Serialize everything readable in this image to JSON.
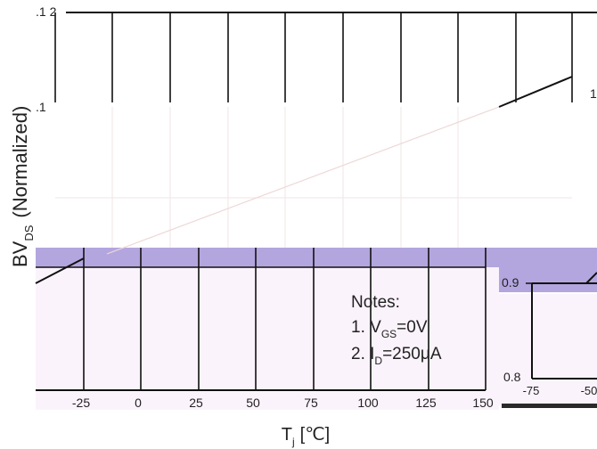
{
  "chart_data": {
    "type": "line",
    "xlabel_main": "T",
    "xlabel_sub": "j",
    "xlabel_unit": "[℃]",
    "ylabel_main": "BV",
    "ylabel_sub": "DS",
    "ylabel_tail": "(Normalized)",
    "x_ticks": [
      "-25",
      "0",
      "25",
      "50",
      "75",
      "100",
      "125",
      "150"
    ],
    "inset_x_ticks": [
      "-75",
      "-50"
    ],
    "y_ticks_left": [
      ".1 2",
      ".1",
      "0.9",
      "0.8"
    ],
    "y_ticks_right": [
      "1"
    ],
    "xlim": [
      -50,
      150
    ],
    "ylim": [
      0.8,
      1.2
    ],
    "grid": true,
    "series": [
      {
        "x": [
          -50,
          -25,
          0,
          25,
          50,
          75,
          100,
          125,
          150
        ],
        "y": [
          0.9,
          0.92,
          0.94,
          0.96,
          0.98,
          1.0,
          1.02,
          1.04,
          1.06
        ]
      }
    ],
    "notes": {
      "title": "Notes:",
      "line1_prefix": "1. V",
      "line1_sub": "GS",
      "line1_suffix": "=0V",
      "line2_prefix": "2. I",
      "line2_sub": "D",
      "line2_suffix": "=250μA"
    },
    "colors": {
      "band": "#b3a6de",
      "panel_tint": "#fbf3fb",
      "axis": "#111111",
      "curve": "#111111",
      "faint_curve": "#eed7d7"
    }
  }
}
